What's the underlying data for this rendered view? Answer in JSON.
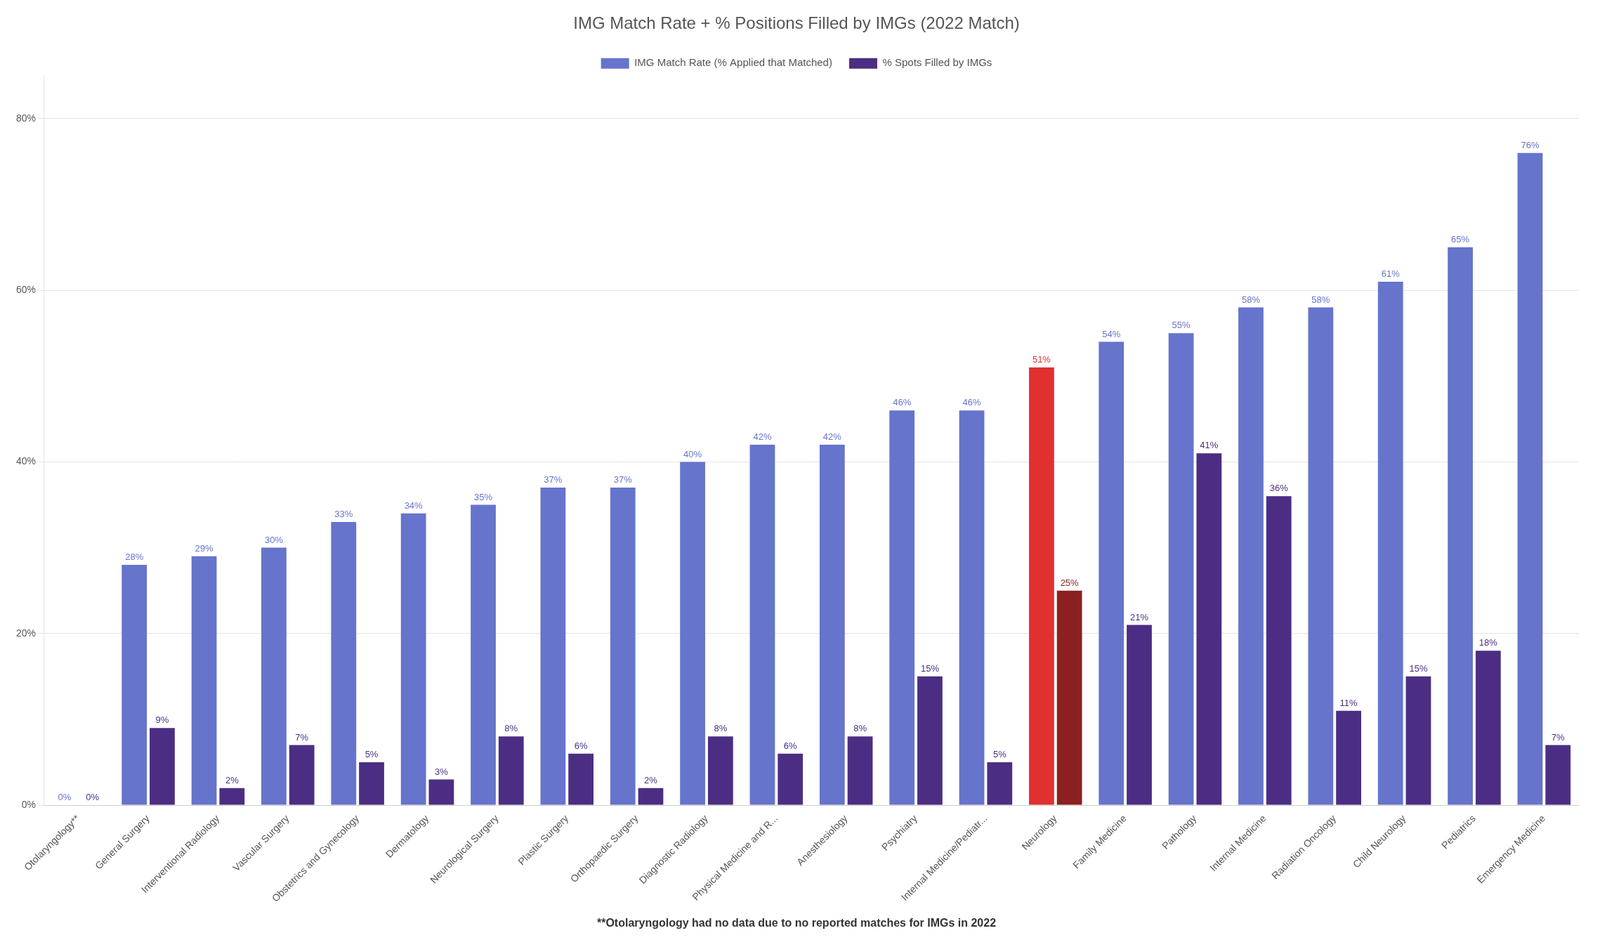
{
  "chart_data": {
    "type": "bar",
    "title": "IMG Match Rate + % Positions Filled by IMGs (2022 Match)",
    "annotations": [
      "**Otolaryngology had no data due to no reported matches for IMGs in 2022"
    ],
    "categories": [
      "Otolaryngology**",
      "General Surgery",
      "Interventional Radiology",
      "Vascular Surgery",
      "Obstetrics and Gynecology",
      "Dermatology",
      "Neurological Surgery",
      "Plastic Surgery",
      "Orthopaedic Surgery",
      "Diagnostic Radiology",
      "Physical Medicine and R...",
      "Anesthesiology",
      "Psychiatry",
      "Internal Medicine/Pediatr...",
      "Neurology",
      "Family Medicine",
      "Pathology",
      "Internal Medicine",
      "Radiation Oncology",
      "Child Neurology",
      "Pediatrics",
      "Emergency Medicine"
    ],
    "series": [
      {
        "name": "IMG Match Rate (% Applied that Matched)",
        "color": "#6674CC",
        "colors": [
          "#6674CC",
          "#6674CC",
          "#6674CC",
          "#6674CC",
          "#6674CC",
          "#6674CC",
          "#6674CC",
          "#6674CC",
          "#6674CC",
          "#6674CC",
          "#6674CC",
          "#6674CC",
          "#6674CC",
          "#6674CC",
          "#E03030",
          "#6674CC",
          "#6674CC",
          "#6674CC",
          "#6674CC",
          "#6674CC",
          "#6674CC",
          "#6674CC"
        ],
        "values": [
          0,
          28,
          29,
          30,
          33,
          34,
          35,
          37,
          37,
          40,
          42,
          42,
          46,
          46,
          51,
          54,
          55,
          58,
          58,
          61,
          65,
          76
        ],
        "value_labels": [
          "0%",
          "28%",
          "29%",
          "30%",
          "33%",
          "34%",
          "35%",
          "37%",
          "37%",
          "40%",
          "42%",
          "42%",
          "46%",
          "46%",
          "51%",
          "54%",
          "55%",
          "58%",
          "58%",
          "61%",
          "65%",
          "76%"
        ]
      },
      {
        "name": "% Spots Filled by IMGs",
        "color": "#4B2E83",
        "colors": [
          "#4B2E83",
          "#4B2E83",
          "#4B2E83",
          "#4B2E83",
          "#4B2E83",
          "#4B2E83",
          "#4B2E83",
          "#4B2E83",
          "#4B2E83",
          "#4B2E83",
          "#4B2E83",
          "#4B2E83",
          "#4B2E83",
          "#4B2E83",
          "#8B2020",
          "#4B2E83",
          "#4B2E83",
          "#4B2E83",
          "#4B2E83",
          "#4B2E83",
          "#4B2E83",
          "#4B2E83"
        ],
        "values": [
          0,
          9,
          2,
          7,
          5,
          3,
          8,
          6,
          2,
          8,
          6,
          8,
          15,
          5,
          25,
          21,
          41,
          36,
          11,
          15,
          18,
          7
        ],
        "value_labels": [
          "0%",
          "9%",
          "2%",
          "7%",
          "5%",
          "3%",
          "8%",
          "6%",
          "2%",
          "8%",
          "6%",
          "8%",
          "15%",
          "5%",
          "25%",
          "21%",
          "41%",
          "36%",
          "11%",
          "15%",
          "18%",
          "7%"
        ]
      }
    ],
    "ylim": [
      0,
      85
    ],
    "yticks": [
      {
        "value": 0,
        "label": "0%"
      },
      {
        "value": 20,
        "label": "20%"
      },
      {
        "value": 40,
        "label": "40%"
      },
      {
        "value": 60,
        "label": "60%"
      },
      {
        "value": 80,
        "label": "80%"
      }
    ],
    "grid": true,
    "legend": "top",
    "data_labels": true
  }
}
